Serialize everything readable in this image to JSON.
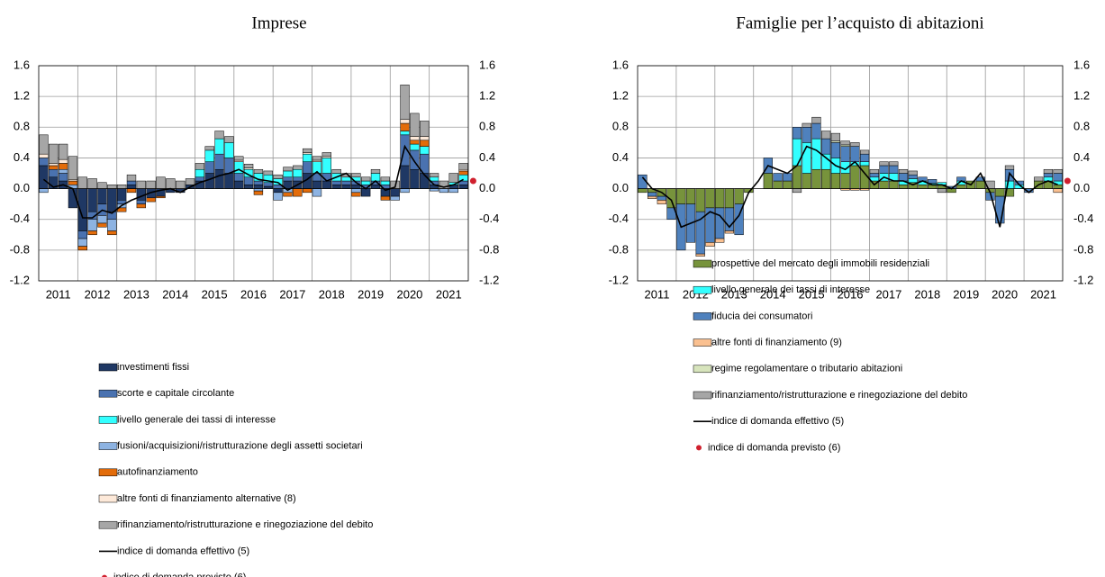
{
  "chart_data": [
    {
      "type": "bar",
      "stacked": true,
      "title": "Imprese",
      "categories": [
        "2011",
        null,
        null,
        null,
        "2012",
        null,
        null,
        null,
        "2013",
        null,
        null,
        null,
        "2014",
        null,
        null,
        null,
        "2015",
        null,
        null,
        null,
        "2016",
        null,
        null,
        null,
        "2017",
        null,
        null,
        null,
        "2018",
        null,
        null,
        null,
        "2019",
        null,
        null,
        null,
        "2020",
        null,
        null,
        null,
        "2021",
        null,
        null,
        null
      ],
      "ylim": [
        -1.2,
        1.6
      ],
      "yticks": [
        -1.2,
        -0.8,
        -0.4,
        {
          "value": 0,
          "label": "0.0"
        },
        0.4,
        0.8,
        1.2,
        1.6
      ],
      "y2lim": [
        -1.2,
        1.6
      ],
      "y2ticks": [
        -1.2,
        -0.8,
        -0.4,
        {
          "value": 0,
          "label": "0.0"
        },
        0.4,
        0.8,
        1.2,
        1.6
      ],
      "grid": true,
      "series": [
        {
          "type": "bar",
          "name": "investimenti fissi",
          "color": "#1f3864",
          "values": [
            0.3,
            0.15,
            0.1,
            -0.25,
            -0.55,
            -0.3,
            -0.2,
            -0.3,
            -0.15,
            0.05,
            -0.15,
            -0.12,
            -0.1,
            -0.05,
            -0.05,
            0.05,
            0.1,
            0.2,
            0.25,
            0.2,
            0.1,
            0.05,
            0.05,
            0.03,
            -0.05,
            0.1,
            0.1,
            0.2,
            0.1,
            0.1,
            0.05,
            0.05,
            0.05,
            -0.1,
            0.05,
            -0.1,
            -0.1,
            0.3,
            0.25,
            0.2,
            0.05,
            0.0,
            0.05,
            0.05
          ]
        },
        {
          "type": "bar",
          "name": "scorte e capitale circolante",
          "color": "#4a72b0",
          "values": [
            0.1,
            0.1,
            0.1,
            0.0,
            -0.1,
            -0.1,
            -0.15,
            -0.1,
            -0.05,
            0.05,
            -0.05,
            0.0,
            0.0,
            0.0,
            0.0,
            0.0,
            0.05,
            0.15,
            0.2,
            0.2,
            0.1,
            0.1,
            0.05,
            0.05,
            0.05,
            0.05,
            0.05,
            0.15,
            0.1,
            0.1,
            0.05,
            0.05,
            0.05,
            0.05,
            0.05,
            0.05,
            0.0,
            0.4,
            0.25,
            0.25,
            0.05,
            0.0,
            0.0,
            0.05
          ]
        },
        {
          "type": "bar",
          "name": "livello generale dei tassi di interesse",
          "color": "#33ffff",
          "values": [
            0,
            0,
            0,
            0,
            0,
            0,
            0,
            0,
            0,
            0,
            0,
            0,
            0,
            0,
            0,
            0,
            0.1,
            0.15,
            0.2,
            0.2,
            0.15,
            0.1,
            0.1,
            0.1,
            0.08,
            0.08,
            0.1,
            0.1,
            0.15,
            0.2,
            0.1,
            0.05,
            0.05,
            0.05,
            0.1,
            0.05,
            0.0,
            0.05,
            0.08,
            0.1,
            0.05,
            0.0,
            0.03,
            0.08
          ]
        },
        {
          "type": "bar",
          "name": "fusioni/acquisizioni/ristrutturazione degli assetti societari",
          "color": "#8db3e2",
          "values": [
            -0.05,
            0.0,
            0.05,
            0.05,
            -0.1,
            -0.15,
            -0.1,
            -0.15,
            -0.05,
            0.0,
            0.0,
            0.0,
            0.0,
            0.0,
            0.0,
            0.0,
            0.0,
            0.0,
            0.0,
            0.0,
            0.0,
            0.0,
            -0.03,
            0.0,
            -0.1,
            -0.05,
            0.0,
            0.0,
            -0.1,
            0.0,
            0.0,
            0.0,
            -0.05,
            0.0,
            0.0,
            0.0,
            -0.05,
            -0.05,
            0.0,
            0.0,
            -0.03,
            -0.05,
            -0.05,
            0.0
          ]
        },
        {
          "type": "bar",
          "name": "autofinanziamento",
          "color": "#e36c0a",
          "values": [
            0,
            0.05,
            0.08,
            0.05,
            -0.05,
            -0.05,
            -0.05,
            -0.05,
            -0.05,
            -0.05,
            -0.05,
            -0.05,
            -0.02,
            0,
            0,
            0,
            0,
            0,
            0,
            0,
            0,
            0,
            -0.05,
            0,
            0,
            -0.05,
            -0.1,
            -0.05,
            0,
            0,
            0,
            0,
            -0.05,
            0,
            0,
            -0.05,
            0,
            0.1,
            0.05,
            0.08,
            0,
            0,
            0,
            0.05
          ]
        },
        {
          "type": "bar",
          "name": "altre fonti di finanziamento alternative (8)",
          "color": "#fde9d9",
          "values": [
            0.05,
            0.03,
            0.05,
            0.02,
            0,
            0,
            0,
            0,
            0,
            0,
            0,
            0,
            0,
            0,
            0,
            0,
            0,
            0,
            0,
            0,
            0.02,
            0.02,
            0,
            0,
            0,
            0,
            0,
            0.02,
            0.02,
            0.02,
            0,
            0,
            0,
            0,
            0,
            0,
            0,
            0.05,
            0.05,
            0.05,
            0,
            0,
            0,
            0.02
          ]
        },
        {
          "type": "bar",
          "name": "rifinanziamento/ristrutturazione e rinegoziazione del debito",
          "color": "#a6a6a6",
          "values": [
            0.25,
            0.25,
            0.2,
            0.3,
            0.15,
            0.13,
            0.08,
            0.05,
            0.05,
            0.08,
            0.1,
            0.1,
            0.15,
            0.13,
            0.1,
            0.08,
            0.08,
            0.05,
            0.1,
            0.08,
            0.05,
            0.05,
            0.05,
            0.05,
            0.05,
            0.05,
            0.05,
            0.05,
            0.05,
            0.05,
            0.05,
            0.05,
            0.05,
            0.05,
            0.05,
            0.05,
            0.1,
            0.45,
            0.3,
            0.2,
            0.05,
            0.1,
            0.12,
            0.08
          ]
        },
        {
          "type": "line",
          "name": "indice di domanda effettivo (5)",
          "color": "#000000",
          "values": [
            0.12,
            0.02,
            0.05,
            0.0,
            -0.38,
            -0.38,
            -0.28,
            -0.32,
            -0.22,
            -0.15,
            -0.1,
            -0.05,
            -0.02,
            0.0,
            -0.05,
            0.02,
            0.08,
            0.12,
            0.17,
            0.2,
            0.25,
            0.18,
            0.12,
            0.1,
            0.08,
            -0.02,
            0.05,
            0.12,
            0.22,
            0.1,
            0.15,
            0.2,
            0.08,
            0.0,
            0.1,
            -0.02,
            0.02,
            0.55,
            0.35,
            0.18,
            0.05,
            0.02,
            0.05,
            0.12
          ]
        }
      ],
      "forecast": {
        "name": "indice di domanda previsto (6)",
        "color": "#d0202e",
        "value": 0.1
      }
    },
    {
      "type": "bar",
      "stacked": true,
      "title": "Famiglie per l’acquisto di abitazioni",
      "categories": [
        "2011",
        null,
        null,
        null,
        "2012",
        null,
        null,
        null,
        "2013",
        null,
        null,
        null,
        "2014",
        null,
        null,
        null,
        "2015",
        null,
        null,
        null,
        "2016",
        null,
        null,
        null,
        "2017",
        null,
        null,
        null,
        "2018",
        null,
        null,
        null,
        "2019",
        null,
        null,
        null,
        "2020",
        null,
        null,
        null,
        "2021",
        null,
        null,
        null
      ],
      "ylim": [
        -1.2,
        1.6
      ],
      "yticks": [
        -1.2,
        -0.8,
        -0.4,
        {
          "value": 0,
          "label": "0.0"
        },
        0.4,
        0.8,
        1.2,
        1.6
      ],
      "y2lim": [
        -1.2,
        1.6
      ],
      "y2ticks": [
        -1.2,
        -0.8,
        -0.4,
        {
          "value": 0,
          "label": "0.0"
        },
        0.4,
        0.8,
        1.2,
        1.6
      ],
      "grid": true,
      "series": [
        {
          "type": "bar",
          "name": "prospettive del mercato degli immobili residenziali",
          "color": "#77933c",
          "values": [
            -0.05,
            -0.05,
            -0.1,
            -0.25,
            -0.2,
            -0.2,
            -0.3,
            -0.25,
            -0.25,
            -0.25,
            -0.2,
            -0.05,
            0.0,
            0.2,
            0.1,
            0.1,
            0.3,
            0.2,
            0.25,
            0.25,
            0.2,
            0.2,
            0.3,
            0.3,
            0.1,
            0.1,
            0.1,
            0.05,
            0.08,
            0.05,
            0.05,
            0.05,
            -0.05,
            0.05,
            0.1,
            0.1,
            -0.05,
            -0.1,
            -0.1,
            0.0,
            0.0,
            0.1,
            0.1,
            0.05
          ]
        },
        {
          "type": "bar",
          "name": "livello generale dei tassi di interesse",
          "color": "#33ffff",
          "values": [
            0,
            0,
            0,
            0,
            0,
            0,
            0,
            0,
            0,
            0,
            0,
            0,
            0,
            0,
            0,
            0,
            0.35,
            0.4,
            0.4,
            0.2,
            0.2,
            0.15,
            0.05,
            0.05,
            0.05,
            0.1,
            0.1,
            0.05,
            0.05,
            0.05,
            0.02,
            0.03,
            0.0,
            0.05,
            0.0,
            0.0,
            0.0,
            0.0,
            0.1,
            0.05,
            0.0,
            0.0,
            0.05,
            0.05
          ]
        },
        {
          "type": "bar",
          "name": "fiducia dei consumatori",
          "color": "#4f81bd",
          "values": [
            0.18,
            -0.05,
            -0.05,
            -0.15,
            -0.6,
            -0.5,
            -0.55,
            -0.45,
            -0.4,
            -0.3,
            -0.4,
            0.0,
            0.0,
            0.2,
            0.1,
            0.1,
            0.15,
            0.2,
            0.2,
            0.2,
            0.2,
            0.2,
            0.2,
            0.1,
            0.05,
            0.1,
            0.1,
            0.1,
            0.05,
            0.05,
            0.05,
            0.0,
            0.03,
            0.05,
            0.0,
            0.05,
            -0.1,
            -0.35,
            0.15,
            0.05,
            -0.05,
            0.0,
            0.05,
            0.1
          ]
        },
        {
          "type": "bar",
          "name": "altre fonti di finanziamento  (9)",
          "color": "#fac090",
          "values": [
            0,
            -0.03,
            -0.05,
            0,
            0,
            0,
            -0.03,
            -0.05,
            -0.05,
            -0.03,
            0,
            0,
            0,
            0,
            0,
            0,
            0,
            0,
            0,
            0,
            0,
            -0.02,
            -0.02,
            -0.02,
            0,
            0,
            0,
            0,
            0,
            0,
            0,
            0,
            0,
            0,
            0,
            0,
            0,
            0,
            0,
            0,
            0,
            0,
            0,
            -0.05
          ]
        },
        {
          "type": "bar",
          "name": "regime regolamentare o tributario abitazioni",
          "color": "#d7e4bc",
          "values": [
            0,
            0,
            0,
            0,
            0,
            0,
            0,
            0,
            0,
            0,
            0,
            0,
            0,
            0,
            0,
            0,
            0,
            0,
            0,
            0,
            0.02,
            0.02,
            0,
            0,
            0,
            0,
            0,
            0,
            0,
            0,
            0,
            0,
            0,
            0,
            0,
            0,
            0,
            0,
            0,
            0,
            0,
            0,
            0,
            0
          ]
        },
        {
          "type": "bar",
          "name": "rifinanziamento/ristrutturazione e rinegoziazione del debito",
          "color": "#a6a6a6",
          "values": [
            0,
            0,
            0,
            0,
            0,
            0,
            0,
            0,
            0,
            0,
            0,
            0,
            0,
            0,
            0,
            0,
            -0.05,
            0.05,
            0.08,
            0.1,
            0.1,
            0.05,
            0.05,
            0.05,
            0.05,
            0.05,
            0.05,
            0.05,
            0.05,
            0.0,
            0.0,
            -0.05,
            0,
            0,
            0,
            0,
            0.1,
            0,
            0.05,
            0,
            0,
            0.05,
            0.05,
            0.05
          ]
        },
        {
          "type": "line",
          "name": "indice di domanda effettivo (5)",
          "color": "#000000",
          "values": [
            0.15,
            0.0,
            -0.05,
            -0.15,
            -0.5,
            -0.45,
            -0.4,
            -0.3,
            -0.35,
            -0.5,
            -0.35,
            -0.05,
            0.1,
            0.3,
            0.25,
            0.2,
            0.3,
            0.55,
            0.5,
            0.4,
            0.3,
            0.25,
            0.35,
            0.2,
            0.05,
            0.15,
            0.1,
            0.1,
            0.05,
            0.1,
            0.05,
            0.05,
            0.0,
            0.1,
            0.05,
            0.2,
            -0.05,
            -0.5,
            0.2,
            0.05,
            -0.05,
            0.05,
            0.1,
            0.05
          ]
        }
      ],
      "forecast": {
        "name": "indice di domanda previsto (6)",
        "color": "#d0202e",
        "value": 0.1
      }
    }
  ]
}
